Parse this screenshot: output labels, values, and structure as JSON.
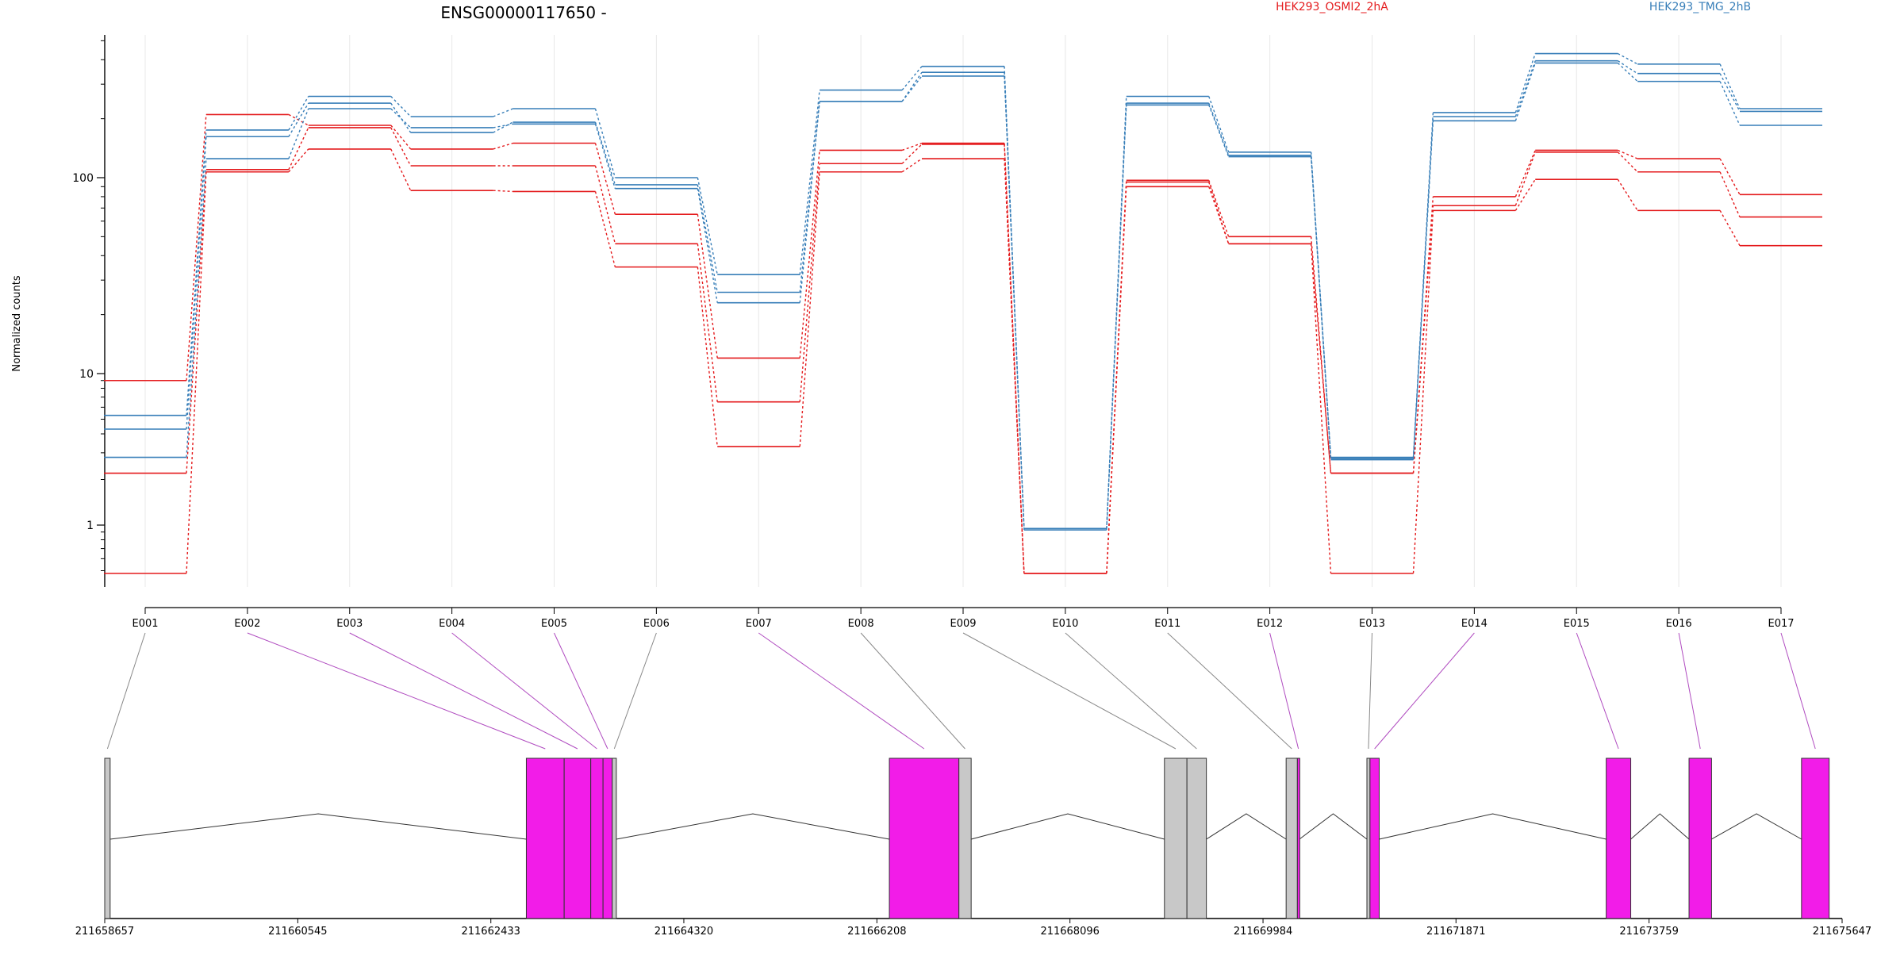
{
  "chart_data": {
    "type": "line",
    "title": "ENSG00000117650 -",
    "ylabel": "Normalized counts",
    "xlabel": "",
    "y_scale": "log",
    "ylim": [
      0.48,
      550
    ],
    "y_ticks": [
      "1",
      "10",
      "100"
    ],
    "categories": [
      "E001",
      "E002",
      "E003",
      "E004",
      "E005",
      "E006",
      "E007",
      "E008",
      "E009",
      "E010",
      "E011",
      "E012",
      "E013",
      "E014",
      "E015",
      "E016",
      "E017"
    ],
    "legend_placement": "top",
    "colors": {
      "HEK293_OSMI2_2hA": "#e41a1c",
      "HEK293_TMG_2hB": "#377eb8",
      "exon_included": "#f21ce8",
      "exon_other": "#c8c8c8"
    },
    "series": [
      {
        "name": "HEK293_OSMI2_2hA",
        "values": [
          9,
          210,
          185,
          140,
          150,
          65,
          12,
          138,
          150,
          0.48,
          97,
          50,
          2.2,
          80,
          138,
          125,
          82
        ]
      },
      {
        "name": "",
        "group": "HEK293_OSMI2_2hA",
        "values": [
          2.2,
          110,
          180,
          115,
          115,
          46,
          6.5,
          118,
          148,
          0.48,
          95,
          46,
          2.2,
          72,
          135,
          107,
          63
        ]
      },
      {
        "name": "",
        "group": "HEK293_OSMI2_2hA",
        "values": [
          0.48,
          107,
          140,
          86,
          85,
          35,
          3.3,
          107,
          125,
          0.48,
          90,
          46,
          0.48,
          68,
          98,
          68,
          45
        ]
      },
      {
        "name": "HEK293_TMG_2hB",
        "values": [
          5.3,
          175,
          260,
          205,
          225,
          100,
          32,
          280,
          370,
          0.95,
          260,
          135,
          2.8,
          215,
          430,
          380,
          225
        ]
      },
      {
        "name": "",
        "group": "HEK293_TMG_2hB",
        "values": [
          4.3,
          162,
          240,
          170,
          192,
          92,
          26,
          245,
          345,
          0.95,
          240,
          130,
          2.75,
          205,
          395,
          340,
          218
        ]
      },
      {
        "name": "",
        "group": "HEK293_TMG_2hB",
        "values": [
          2.8,
          125,
          225,
          180,
          188,
          88,
          23,
          245,
          330,
          0.93,
          235,
          128,
          2.7,
          195,
          385,
          310,
          185
        ]
      }
    ],
    "genomic_axis_ticks": [
      "211658657",
      "211660545",
      "211662433",
      "211664320",
      "211666208",
      "211668096",
      "211669984",
      "211671871",
      "211673759",
      "211675647"
    ],
    "genomic_range": [
      211658657,
      211675647
    ],
    "exons": [
      {
        "id": "E001",
        "start": 211658657,
        "end": 211658710,
        "included": false
      },
      {
        "id": "E002",
        "start": 211662780,
        "end": 211663150,
        "included": true
      },
      {
        "id": "E003",
        "start": 211663150,
        "end": 211663410,
        "included": true
      },
      {
        "id": "E004",
        "start": 211663410,
        "end": 211663530,
        "included": true
      },
      {
        "id": "E005",
        "start": 211663530,
        "end": 211663620,
        "included": true
      },
      {
        "id": "E006",
        "start": 211663620,
        "end": 211663660,
        "included": false
      },
      {
        "id": "E007",
        "start": 211666330,
        "end": 211667010,
        "included": true
      },
      {
        "id": "E008",
        "start": 211667010,
        "end": 211667130,
        "included": false
      },
      {
        "id": "E009",
        "start": 211669020,
        "end": 211669240,
        "included": false
      },
      {
        "id": "E010",
        "start": 211669240,
        "end": 211669430,
        "included": false
      },
      {
        "id": "E011",
        "start": 211670210,
        "end": 211670320,
        "included": false
      },
      {
        "id": "E012",
        "start": 211670320,
        "end": 211670340,
        "included": true
      },
      {
        "id": "E013",
        "start": 211671000,
        "end": 211671030,
        "included": false
      },
      {
        "id": "E014",
        "start": 211671030,
        "end": 211671120,
        "included": true
      },
      {
        "id": "E015",
        "start": 211673340,
        "end": 211673580,
        "included": true
      },
      {
        "id": "E016",
        "start": 211674150,
        "end": 211674370,
        "included": true
      },
      {
        "id": "E017",
        "start": 211675250,
        "end": 211675520,
        "included": true
      }
    ]
  }
}
